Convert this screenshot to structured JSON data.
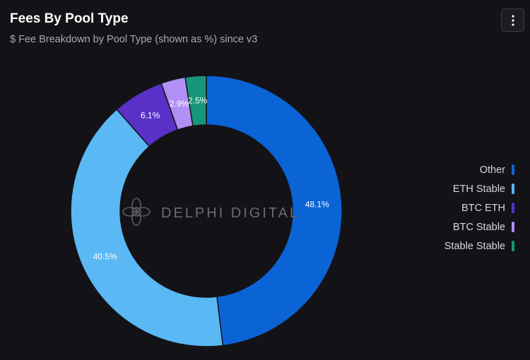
{
  "header": {
    "title": "Fees By Pool Type",
    "subtitle": "$ Fee Breakdown by Pool Type (shown as %) since v3",
    "menu_icon": "vertical-ellipsis-icon"
  },
  "watermark": {
    "text": "DELPHI DIGITAL",
    "logo_icon": "delphi-logo-icon"
  },
  "chart_data": {
    "type": "pie",
    "subtype": "donut",
    "title": "Fees By Pool Type",
    "subtitle": "$ Fee Breakdown by Pool Type (shown as %) since v3",
    "unit": "%",
    "legend_position": "right",
    "slices": [
      {
        "label": "Other",
        "value": 48.1,
        "color": "#0b64d6"
      },
      {
        "label": "ETH Stable",
        "value": 40.5,
        "color": "#5ab8f5"
      },
      {
        "label": "BTC ETH",
        "value": 6.1,
        "color": "#5930c8"
      },
      {
        "label": "BTC Stable",
        "value": 2.9,
        "color": "#b190f5"
      },
      {
        "label": "Stable Stable",
        "value": 2.5,
        "color": "#17957a"
      }
    ]
  }
}
